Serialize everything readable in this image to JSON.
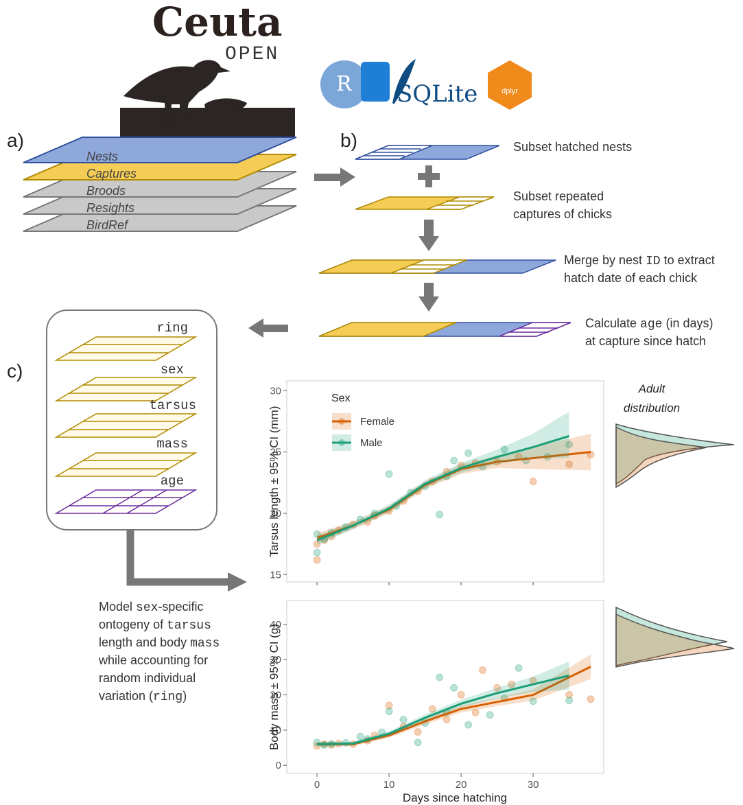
{
  "logo": {
    "title": "Ceuta",
    "subtitle": "OPEN",
    "tools": [
      "R",
      "SQLite",
      "dplyr"
    ]
  },
  "panels": {
    "a": "a)",
    "b": "b)",
    "c": "c)"
  },
  "tables": [
    "Nests",
    "Captures",
    "Broods",
    "Resights",
    "BirdRef"
  ],
  "steps": [
    {
      "lines": [
        [
          {
            "text": "Subset hatched nests"
          }
        ]
      ]
    },
    {
      "lines": [
        [
          {
            "text": "Subset repeated"
          }
        ],
        [
          {
            "text": "captures of chicks"
          }
        ]
      ]
    },
    {
      "lines": [
        [
          {
            "text": "Merge by nest "
          },
          {
            "text": "ID",
            "code": true
          },
          {
            "text": " to extract"
          }
        ],
        [
          {
            "text": "hatch date of each chick"
          }
        ]
      ]
    },
    {
      "lines": [
        [
          {
            "text": "Calculate "
          },
          {
            "text": "age",
            "code": true
          },
          {
            "text": " (in days)"
          }
        ],
        [
          {
            "text": "at capture since hatch"
          }
        ]
      ]
    }
  ],
  "fields": [
    "ring",
    "sex",
    "tarsus",
    "mass",
    "age"
  ],
  "model": {
    "lines": [
      [
        {
          "text": "Model "
        },
        {
          "text": "sex",
          "code": true
        },
        {
          "text": "-specific"
        }
      ],
      [
        {
          "text": "ontogeny of "
        },
        {
          "text": "tarsus",
          "code": true
        }
      ],
      [
        {
          "text": "length and body "
        },
        {
          "text": "mass",
          "code": true
        }
      ],
      [
        {
          "text": "while accounting for"
        }
      ],
      [
        {
          "text": "random individual"
        }
      ],
      [
        {
          "text": "variation ("
        },
        {
          "text": "ring",
          "code": true
        },
        {
          "text": ")"
        }
      ]
    ]
  },
  "charts": {
    "legend_title": "Sex",
    "x_label": "Days since hatching",
    "side_title": [
      "Adult",
      "distribution"
    ],
    "xlim": [
      -4.2,
      39.8
    ],
    "xticks": [
      0,
      10,
      20,
      30
    ],
    "series": [
      {
        "name": "Female",
        "color": "#d95f02"
      },
      {
        "name": "Male",
        "color": "#1b9e77"
      }
    ],
    "panels": [
      {
        "type": "line",
        "y_label": "Tarsus length ± 95% CI (mm)",
        "ylim": [
          14.4,
          30.8
        ],
        "yticks": [
          15,
          20,
          25,
          30
        ],
        "fits": [
          {
            "x": [
              0,
              5,
              10,
              15,
              20,
              25,
              30,
              38
            ],
            "values": [
              18,
              19,
              20.3,
              22.3,
              23.6,
              24.2,
              24.5,
              25
            ],
            "lower": [
              17.6,
              18.7,
              20,
              22,
              23.2,
              23.7,
              23.6,
              23.5
            ],
            "upper": [
              18.4,
              19.3,
              20.6,
              22.6,
              24,
              24.7,
              25.4,
              26.5
            ]
          },
          {
            "x": [
              0,
              5,
              10,
              15,
              20,
              25,
              30,
              35
            ],
            "values": [
              17.8,
              19,
              20.4,
              22.4,
              23.7,
              24.6,
              25.4,
              26.3
            ],
            "lower": [
              17.4,
              18.7,
              20.1,
              22.1,
              23.3,
              24,
              24.5,
              24.5
            ],
            "upper": [
              18.2,
              19.3,
              20.7,
              22.7,
              24.1,
              25.2,
              26.5,
              28.3
            ]
          }
        ],
        "points": [
          {
            "x": [
              0,
              0,
              1,
              2,
              3,
              5,
              7,
              8,
              10,
              12,
              14,
              16,
              18,
              20,
              22,
              25,
              28,
              30,
              35,
              38
            ],
            "y": [
              16.2,
              17.5,
              17.8,
              18.1,
              18.6,
              19.1,
              19.3,
              19.8,
              20.2,
              21,
              21.8,
              22.6,
              23.4,
              23.9,
              24.1,
              24.2,
              24.6,
              22.6,
              24,
              24.8
            ]
          },
          {
            "x": [
              0,
              0,
              1,
              2,
              4,
              6,
              8,
              10,
              11,
              13,
              15,
              17,
              18,
              19,
              21,
              23,
              26,
              29,
              32,
              35
            ],
            "y": [
              16.8,
              18.3,
              17.9,
              18.4,
              18.9,
              19.5,
              20,
              23.2,
              20.6,
              21.7,
              22.2,
              19.9,
              23,
              24.3,
              24.9,
              23.8,
              25.2,
              24.3,
              24.6,
              25.6
            ]
          }
        ]
      },
      {
        "type": "line",
        "y_label": "Body mass ± 95% CI (g)",
        "ylim": [
          -2.3,
          46.8
        ],
        "yticks": [
          0,
          10,
          20,
          30,
          40
        ],
        "fits": [
          {
            "x": [
              0,
              5,
              10,
              15,
              20,
              25,
              30,
              38
            ],
            "values": [
              6,
              6,
              8.5,
              12.5,
              16,
              18,
              20,
              28
            ],
            "lower": [
              5.4,
              5.5,
              7.8,
              11.6,
              15,
              16.8,
              18.4,
              24.5
            ],
            "upper": [
              6.6,
              6.5,
              9.2,
              13.4,
              17,
              19.2,
              21.6,
              31.5
            ]
          },
          {
            "x": [
              0,
              5,
              10,
              15,
              20,
              25,
              30,
              35
            ],
            "values": [
              6,
              6.2,
              9,
              13.5,
              17.5,
              20.5,
              23,
              25.5
            ],
            "lower": [
              5.4,
              5.7,
              8.3,
              12.6,
              16.4,
              19,
              20.8,
              21.5
            ],
            "upper": [
              6.6,
              6.7,
              9.7,
              14.4,
              18.6,
              22,
              25.2,
              29.5
            ]
          }
        ],
        "points": [
          {
            "x": [
              0,
              1,
              2,
              3,
              5,
              7,
              8,
              10,
              12,
              14,
              16,
              18,
              20,
              22,
              23,
              25,
              27,
              30,
              35,
              38
            ],
            "y": [
              5.5,
              6,
              5.8,
              6.2,
              6,
              7,
              8.5,
              17,
              11,
              9.5,
              16,
              13,
              20,
              15,
              27,
              22,
              23,
              24,
              20,
              18.8
            ]
          },
          {
            "x": [
              0,
              1,
              2,
              4,
              6,
              7,
              9,
              10,
              12,
              14,
              15,
              17,
              18,
              19,
              21,
              24,
              26,
              28,
              30,
              35
            ],
            "y": [
              6.5,
              5.8,
              6.1,
              6.4,
              8.2,
              7.5,
              9.4,
              15.3,
              13,
              6.5,
              12,
              25,
              15.1,
              22,
              11.5,
              14.3,
              19,
              27.6,
              18.2,
              18.4
            ]
          }
        ]
      }
    ]
  }
}
